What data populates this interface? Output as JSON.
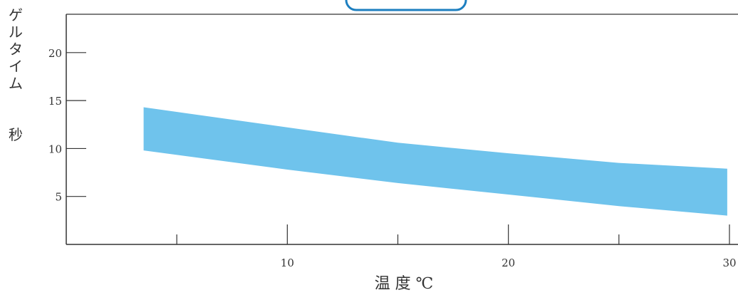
{
  "chart_data": {
    "type": "area",
    "title": "",
    "xlabel": "温 度 ℃",
    "ylabel_lines": [
      "ゲ",
      "ル",
      "タ",
      "イ",
      "ム"
    ],
    "ylabel_unit": "秒",
    "xlim": [
      0,
      30
    ],
    "ylim": [
      0,
      24
    ],
    "x_ticks": [
      5,
      10,
      15,
      20,
      25,
      30
    ],
    "x_tick_labels": [
      "10",
      "20",
      "30"
    ],
    "x_tick_label_values": [
      10,
      20,
      30
    ],
    "y_ticks": [
      5,
      10,
      15,
      20
    ],
    "y_tick_labels": [
      "5",
      "10",
      "15",
      "20"
    ],
    "grid": false,
    "series": [
      {
        "x": [
          3.5,
          10,
          15,
          20,
          25,
          29.9
        ],
        "upper": [
          14.3,
          12.2,
          10.6,
          9.5,
          8.5,
          7.9
        ],
        "lower": [
          9.8,
          7.8,
          6.4,
          5.2,
          4.0,
          3.0
        ]
      }
    ],
    "colors": {
      "band": "#6fc3ec",
      "axis": "#333333",
      "header_box": "#1d7fc0"
    }
  }
}
